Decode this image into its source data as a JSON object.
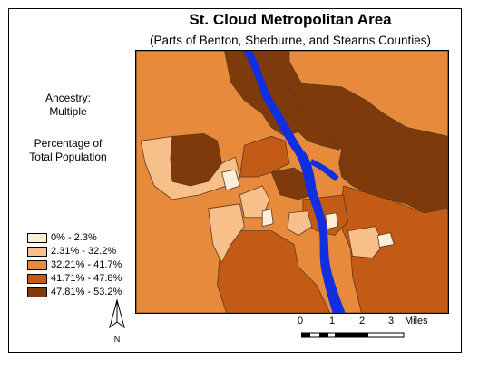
{
  "title": "St. Cloud Metropolitan Area",
  "subtitle": "(Parts of Benton, Sherburne, and Stearns Counties)",
  "variable": {
    "line1": "Ancestry:",
    "line2": "Multiple"
  },
  "measure": {
    "line1": "Percentage of",
    "line2": "Total Population"
  },
  "legend": [
    {
      "label": "0% - 2.3%",
      "color": "#fdeed9"
    },
    {
      "label": "2.31% - 32.2%",
      "color": "#f7c08b"
    },
    {
      "label": "32.21% - 41.7%",
      "color": "#e88a3c"
    },
    {
      "label": "41.71% - 47.8%",
      "color": "#c35a15"
    },
    {
      "label": "47.81% - 53.2%",
      "color": "#7f3a0c"
    }
  ],
  "colors": {
    "river": "#0f2fe0",
    "outline": "#5a3a1e"
  },
  "north_label": "N",
  "scale": {
    "ticks": [
      "0",
      "1",
      "2",
      "3"
    ],
    "unit": "Miles"
  }
}
